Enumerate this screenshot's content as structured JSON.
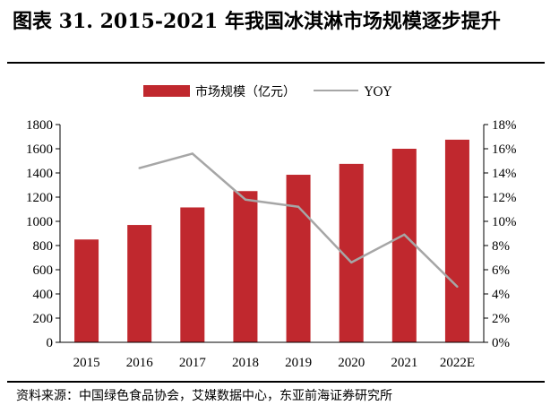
{
  "figure_title": "图表 31. 2015-2021 年我国冰淇淋市场规模逐步提升",
  "source_note": "资料来源：中国绿色食品协会，艾媒数据中心，东亚前海证券研究所",
  "colors": {
    "bar": "#C0282E",
    "line": "#A6A6A6",
    "axis": "#000000"
  },
  "chart_data": {
    "type": "bar",
    "categories": [
      "2015",
      "2016",
      "2017",
      "2018",
      "2019",
      "2020",
      "2021",
      "2022E"
    ],
    "series": [
      {
        "name": "市场规模（亿元）",
        "type": "bar",
        "axis": "left",
        "values": [
          850,
          970,
          1115,
          1250,
          1385,
          1475,
          1600,
          1675
        ]
      },
      {
        "name": "YOY",
        "type": "line",
        "axis": "right",
        "values": [
          null,
          14.4,
          15.6,
          11.8,
          11.2,
          6.6,
          8.9,
          4.6
        ]
      }
    ],
    "yticks_left": [
      "0",
      "200",
      "400",
      "600",
      "800",
      "1000",
      "1200",
      "1400",
      "1600",
      "1800"
    ],
    "yticks_right": [
      "0%",
      "2%",
      "4%",
      "6%",
      "8%",
      "10%",
      "12%",
      "14%",
      "16%",
      "18%"
    ],
    "ylim_left": [
      0,
      1800
    ],
    "ylim_right": [
      0,
      18
    ],
    "legend_position": "top-center",
    "grid": false
  }
}
